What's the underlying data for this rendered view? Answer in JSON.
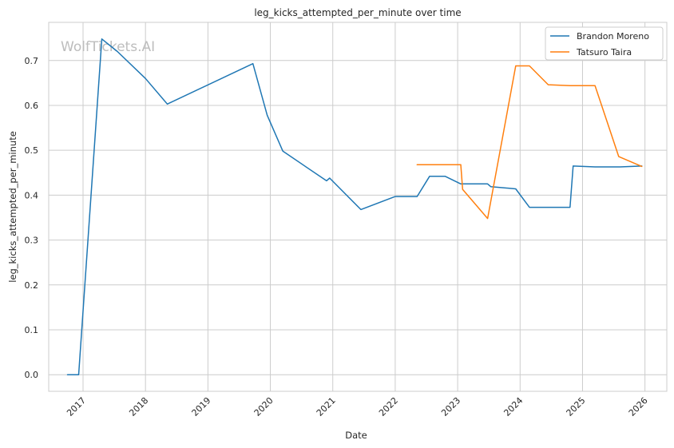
{
  "chart_data": {
    "type": "line",
    "title": "leg_kicks_attempted_per_minute over time",
    "xlabel": "Date",
    "ylabel": "leg_kicks_attempted_per_minute",
    "watermark": "WolfTickets.AI",
    "xlim": [
      2016.45,
      2026.35
    ],
    "ylim": [
      -0.037,
      0.785
    ],
    "x_ticks": [
      2017,
      2018,
      2019,
      2020,
      2021,
      2022,
      2023,
      2024,
      2025,
      2026
    ],
    "x_tick_labels": [
      "2017",
      "2018",
      "2019",
      "2020",
      "2021",
      "2022",
      "2023",
      "2024",
      "2025",
      "2026"
    ],
    "y_ticks": [
      0.0,
      0.1,
      0.2,
      0.3,
      0.4,
      0.5,
      0.6,
      0.7
    ],
    "y_tick_labels": [
      "0.0",
      "0.1",
      "0.2",
      "0.3",
      "0.4",
      "0.5",
      "0.6",
      "0.7"
    ],
    "grid": true,
    "legend_position": "top-right",
    "series": [
      {
        "name": "Brandon Moreno",
        "color": "#1f77b4",
        "points": [
          [
            2016.75,
            0.0
          ],
          [
            2016.93,
            0.0
          ],
          [
            2017.3,
            0.748
          ],
          [
            2017.55,
            0.72
          ],
          [
            2018.0,
            0.66
          ],
          [
            2018.35,
            0.603
          ],
          [
            2019.72,
            0.693
          ],
          [
            2019.95,
            0.578
          ],
          [
            2020.2,
            0.498
          ],
          [
            2020.9,
            0.432
          ],
          [
            2020.95,
            0.438
          ],
          [
            2021.45,
            0.368
          ],
          [
            2022.0,
            0.397
          ],
          [
            2022.35,
            0.397
          ],
          [
            2022.55,
            0.442
          ],
          [
            2022.8,
            0.442
          ],
          [
            2023.05,
            0.425
          ],
          [
            2023.48,
            0.425
          ],
          [
            2023.53,
            0.419
          ],
          [
            2023.93,
            0.414
          ],
          [
            2024.15,
            0.373
          ],
          [
            2024.8,
            0.373
          ],
          [
            2024.85,
            0.465
          ],
          [
            2025.2,
            0.463
          ],
          [
            2025.6,
            0.463
          ],
          [
            2025.95,
            0.465
          ]
        ]
      },
      {
        "name": "Tatsuro Taira",
        "color": "#ff7f0e",
        "points": [
          [
            2022.35,
            0.468
          ],
          [
            2023.05,
            0.468
          ],
          [
            2023.08,
            0.413
          ],
          [
            2023.48,
            0.348
          ],
          [
            2023.93,
            0.688
          ],
          [
            2024.15,
            0.688
          ],
          [
            2024.45,
            0.646
          ],
          [
            2024.8,
            0.644
          ],
          [
            2025.2,
            0.644
          ],
          [
            2025.58,
            0.486
          ],
          [
            2025.95,
            0.464
          ]
        ]
      }
    ]
  }
}
